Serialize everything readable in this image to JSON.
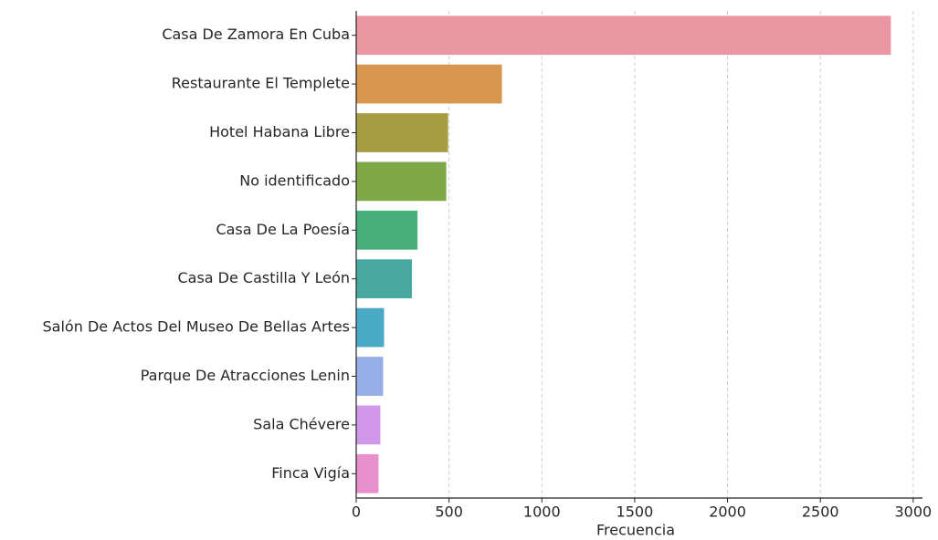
{
  "chart_data": {
    "type": "barh",
    "categories": [
      "Casa De Zamora En Cuba",
      "Restaurante El Templete",
      "Hotel Habana Libre",
      "No identificado",
      "Casa De La Poesía",
      "Casa De Castilla Y León",
      "Salón De Actos Del Museo De Bellas Artes",
      "Parque De Atracciones Lenin",
      "Sala Chévere",
      "Finca Vigía"
    ],
    "values": [
      2880,
      785,
      495,
      485,
      330,
      300,
      150,
      145,
      130,
      120
    ],
    "colors": [
      "#eb96a3",
      "#d8974f",
      "#a89c43",
      "#7ea946",
      "#46ae78",
      "#48a9a0",
      "#4aaac5",
      "#94aee8",
      "#d197e8",
      "#e890cc"
    ],
    "xlabel": "Frecuencia",
    "xlim": [
      0,
      3050
    ],
    "xticks": [
      0,
      500,
      1000,
      1500,
      2000,
      2500,
      3000
    ],
    "grid": true
  }
}
